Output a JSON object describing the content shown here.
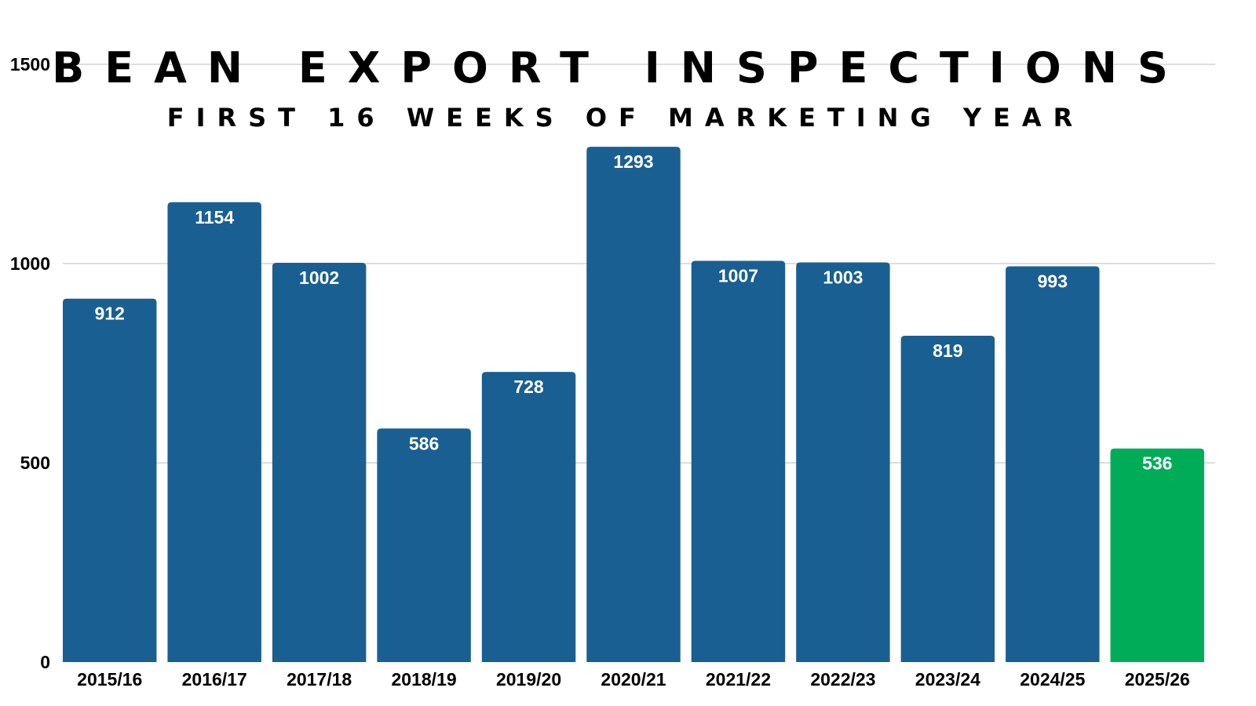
{
  "chart_data": {
    "type": "bar",
    "title": "BEAN EXPORT INSPECTIONS",
    "subtitle": "FIRST 16 WEEKS OF MARKETING YEAR",
    "xlabel": "",
    "ylabel": "",
    "categories": [
      "2015/16",
      "2016/17",
      "2017/18",
      "2018/19",
      "2019/20",
      "2020/21",
      "2021/22",
      "2022/23",
      "2023/24",
      "2024/25",
      "2025/26"
    ],
    "values": [
      912,
      1154,
      1002,
      586,
      728,
      1293,
      1007,
      1003,
      819,
      993,
      536
    ],
    "ylim": [
      0,
      1500
    ],
    "yticks": [
      "0",
      "500",
      "1000",
      "1500"
    ],
    "grid": true,
    "legend": "none",
    "colors": {
      "bar": "#1a5f91",
      "highlight": "#00ac58",
      "label": "#ffffff",
      "grid": "#d4d4d4"
    },
    "highlight_index": 10
  }
}
